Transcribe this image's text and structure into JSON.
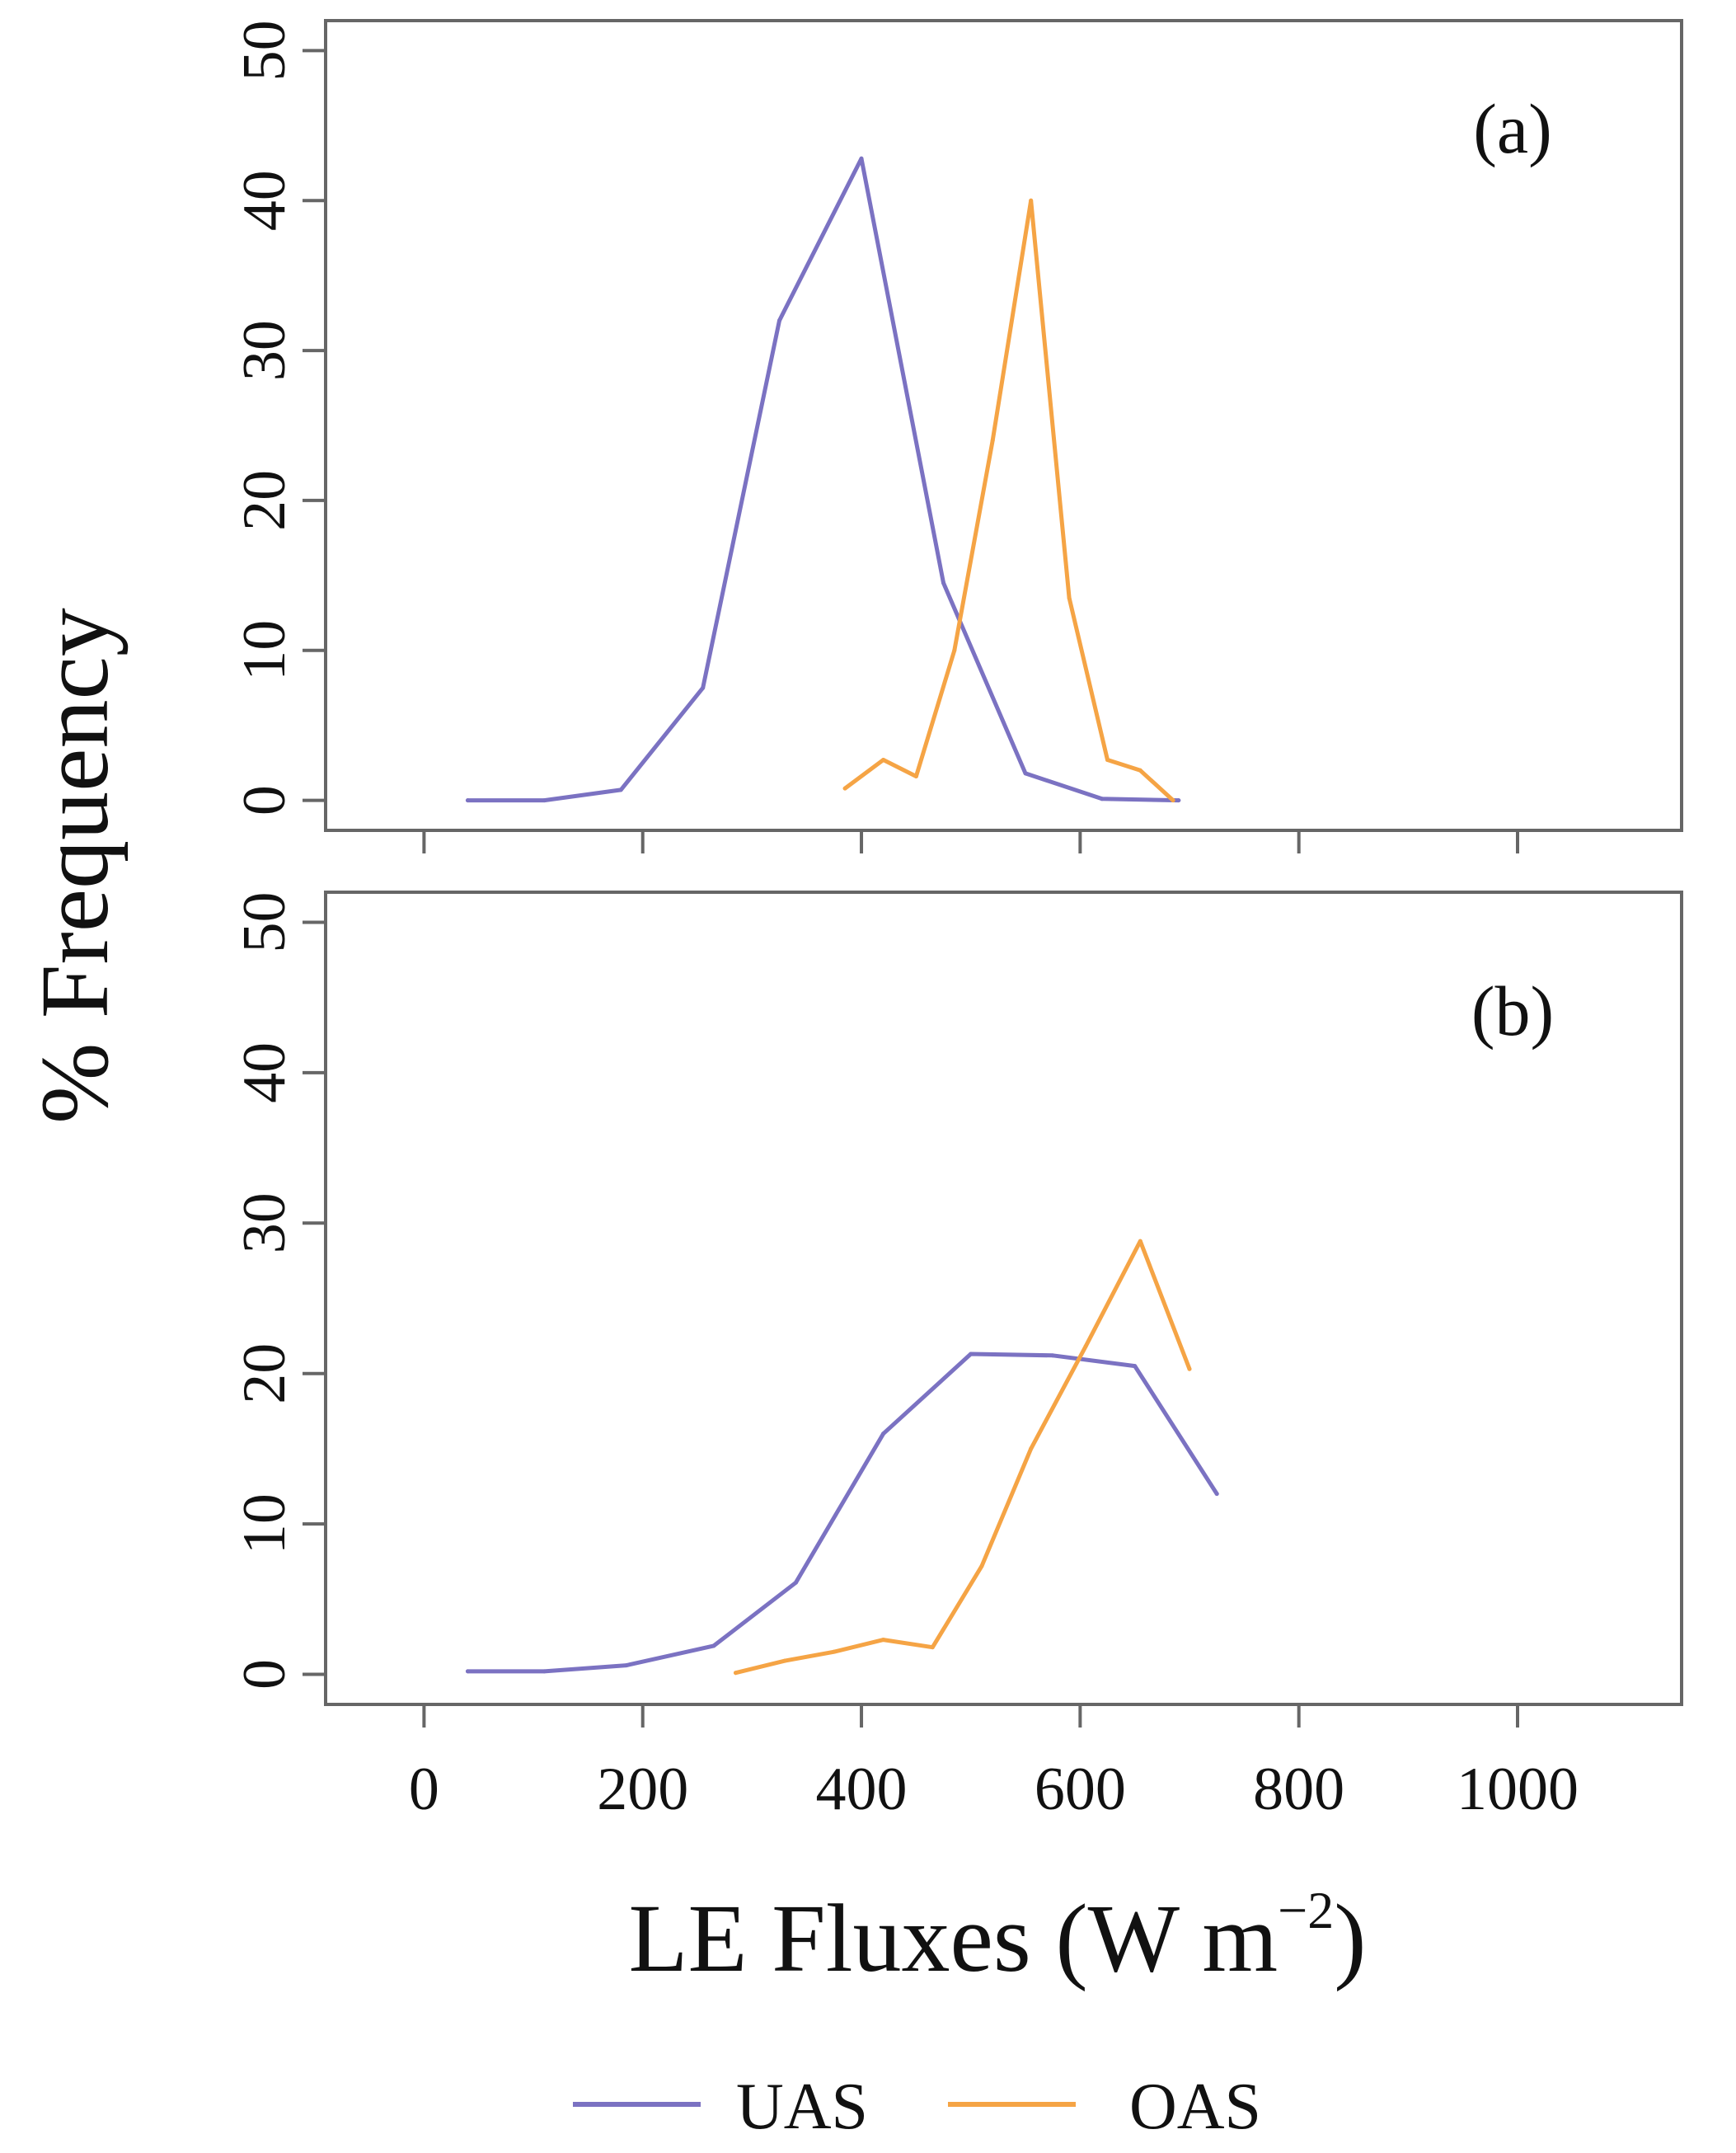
{
  "chart_data": {
    "type": "line",
    "ylabel": "% Frequency",
    "xlabel_main": "LE Fluxes (W m",
    "xlabel_sup": "−2",
    "xlabel_close": ")",
    "xlim": [
      -90,
      1150
    ],
    "ylim": [
      -2,
      52
    ],
    "x_ticks": [
      0,
      200,
      400,
      600,
      800,
      1000
    ],
    "x_tick_labels": [
      "0",
      "200",
      "400",
      "600",
      "800",
      "1000"
    ],
    "y_ticks": [
      0,
      10,
      20,
      30,
      40,
      50
    ],
    "y_tick_labels": [
      "0",
      "10",
      "20",
      "30",
      "40",
      "50"
    ],
    "legend": {
      "position": "bottom-center",
      "entries": [
        {
          "name": "UAS",
          "color": "#7b72c2"
        },
        {
          "name": "OAS",
          "color": "#f5a445"
        }
      ]
    },
    "panels": [
      {
        "tag": "(a)",
        "series": [
          {
            "name": "UAS",
            "color": "#7b72c2",
            "x": [
              40,
              110,
              180,
              255,
              325,
              400,
              475,
              550,
              620,
              690
            ],
            "y": [
              0,
              0,
              0.7,
              7.5,
              32,
              42.8,
              14.5,
              1.8,
              0.1,
              0
            ]
          },
          {
            "name": "OAS",
            "color": "#f5a445",
            "x": [
              385,
              420,
              450,
              485,
              520,
              555,
              590,
              625,
              655,
              685
            ],
            "y": [
              0.8,
              2.7,
              1.6,
              10,
              24,
              40,
              13.5,
              2.7,
              2.0,
              0
            ]
          }
        ]
      },
      {
        "tag": "(b)",
        "series": [
          {
            "name": "UAS",
            "color": "#7b72c2",
            "x": [
              40,
              110,
              185,
              265,
              340,
              420,
              500,
              575,
              650,
              725
            ],
            "y": [
              0.2,
              0.2,
              0.6,
              1.9,
              6.1,
              16,
              21.3,
              21.2,
              20.5,
              12
            ]
          },
          {
            "name": "OAS",
            "color": "#f5a445",
            "x": [
              285,
              330,
              375,
              420,
              465,
              510,
              555,
              605,
              655,
              700
            ],
            "y": [
              0.1,
              0.9,
              1.5,
              2.3,
              1.8,
              7.2,
              15,
              21.8,
              28.8,
              20.3
            ]
          }
        ]
      }
    ]
  }
}
